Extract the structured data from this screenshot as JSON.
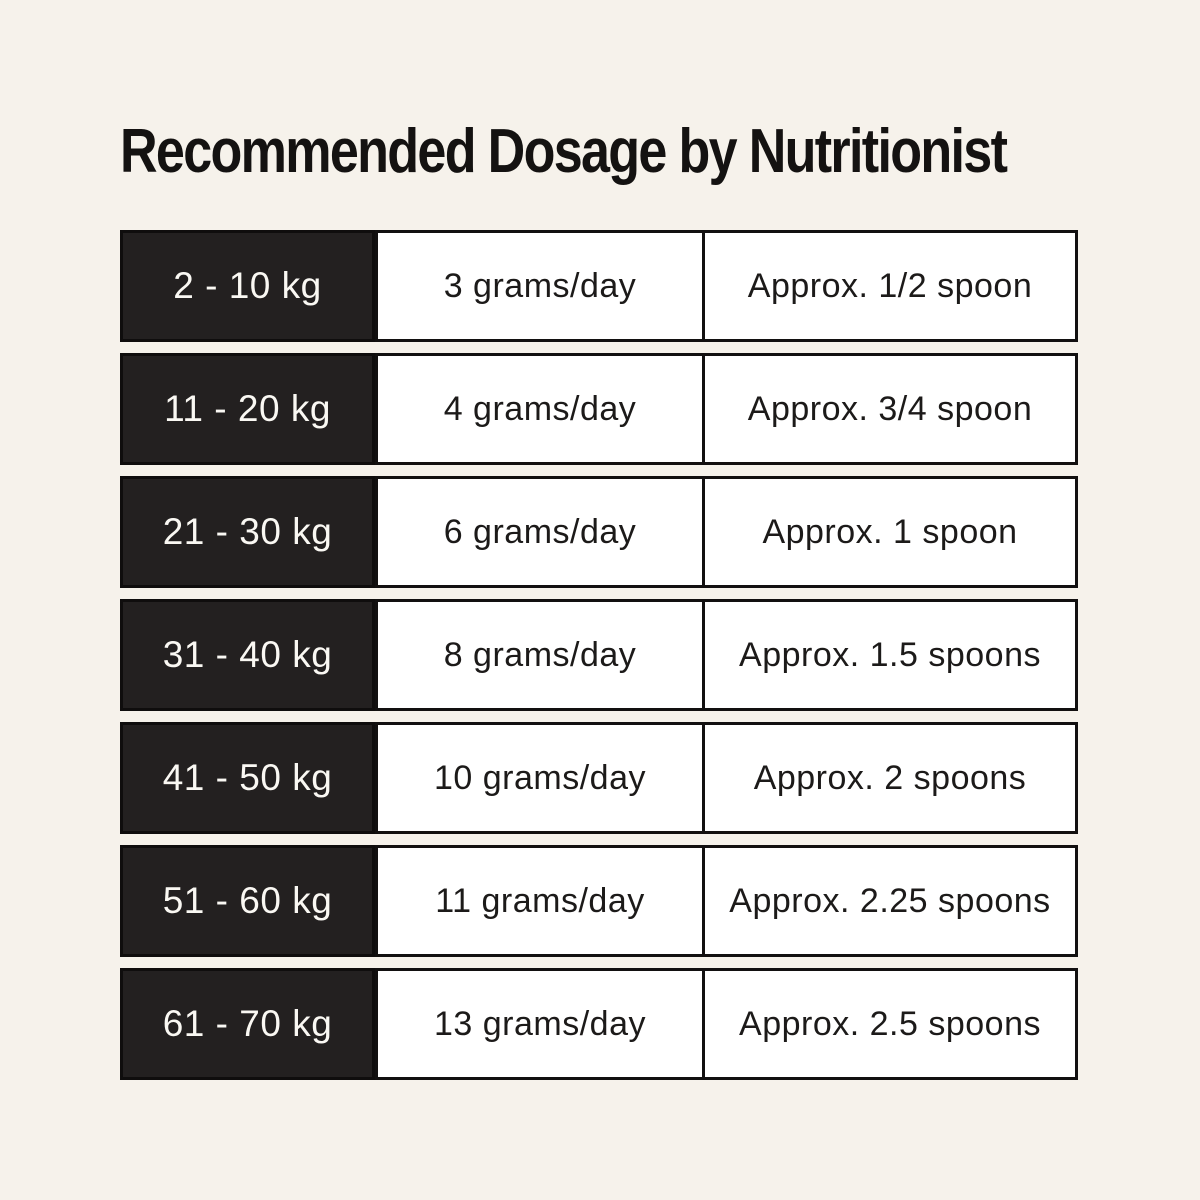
{
  "title": "Recommended Dosage by Nutritionist",
  "colors": {
    "background": "#f6f2eb",
    "header_cell_bg": "#232020",
    "header_cell_border": "#0f0d0d",
    "header_cell_text": "#faf8f3",
    "cell_bg": "#ffffff",
    "cell_text": "#1c1a19",
    "border": "#121010",
    "title_color": "#141211"
  },
  "chart_data": {
    "type": "table",
    "title": "Recommended Dosage by Nutritionist",
    "rows": [
      {
        "weight": "2 - 10 kg",
        "dosage": "3 grams/day",
        "spoons": "Approx. 1/2 spoon"
      },
      {
        "weight": "11 - 20 kg",
        "dosage": "4 grams/day",
        "spoons": "Approx. 3/4 spoon"
      },
      {
        "weight": "21 - 30 kg",
        "dosage": "6 grams/day",
        "spoons": "Approx. 1 spoon"
      },
      {
        "weight": "31 - 40 kg",
        "dosage": "8 grams/day",
        "spoons": "Approx. 1.5 spoons"
      },
      {
        "weight": "41 - 50 kg",
        "dosage": "10 grams/day",
        "spoons": "Approx. 2 spoons"
      },
      {
        "weight": "51 - 60 kg",
        "dosage": "11 grams/day",
        "spoons": "Approx. 2.25 spoons"
      },
      {
        "weight": "61 - 70 kg",
        "dosage": "13 grams/day",
        "spoons": "Approx. 2.5 spoons"
      }
    ]
  }
}
